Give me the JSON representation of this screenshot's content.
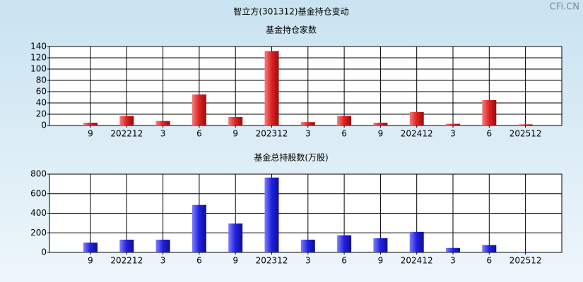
{
  "title": "智立方(301312)基金持仓变动",
  "watermark": "CFi.CN",
  "chart_data": [
    {
      "type": "bar",
      "title": "基金持仓家数",
      "categories": [
        "9",
        "202212",
        "3",
        "6",
        "9",
        "202312",
        "3",
        "6",
        "9",
        "202412",
        "3",
        "6",
        "202512"
      ],
      "values": [
        5,
        17,
        8,
        55,
        15,
        132,
        6,
        17,
        5,
        24,
        3,
        45,
        2
      ],
      "color": "#e02020",
      "ylim": [
        0,
        140
      ],
      "yticks": [
        0,
        20,
        40,
        60,
        80,
        100,
        120,
        140
      ],
      "grid": true
    },
    {
      "type": "bar",
      "title": "基金总持股数(万股)",
      "categories": [
        "9",
        "202212",
        "3",
        "6",
        "9",
        "202312",
        "3",
        "6",
        "9",
        "202412",
        "3",
        "6",
        "202512"
      ],
      "values": [
        100,
        130,
        130,
        485,
        295,
        765,
        130,
        175,
        145,
        210,
        45,
        75,
        5
      ],
      "color": "#2020e0",
      "ylim": [
        0,
        800
      ],
      "yticks": [
        0,
        200,
        400,
        600,
        800
      ],
      "grid": true
    }
  ]
}
